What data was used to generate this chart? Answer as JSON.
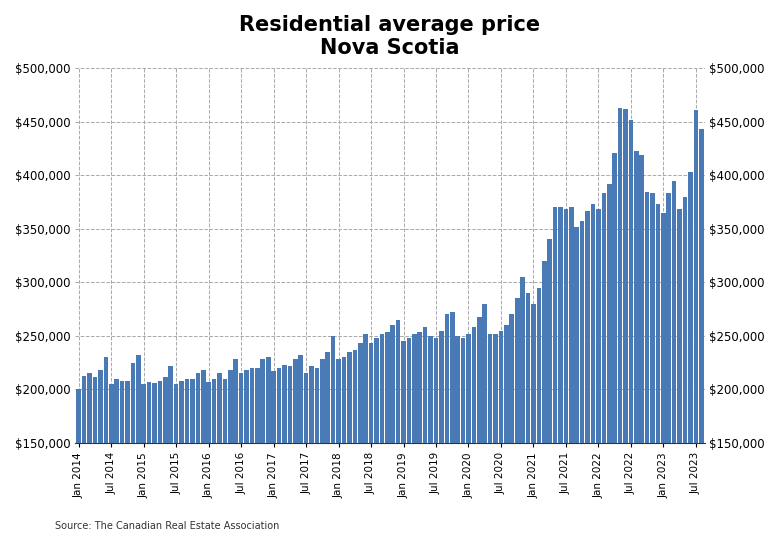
{
  "title": "Residential average price\nNova Scotia",
  "bar_color": "#4a7ab5",
  "source_text": "Source: The Canadian Real Estate Association",
  "ylim": [
    150000,
    500000
  ],
  "yticks": [
    150000,
    200000,
    250000,
    300000,
    350000,
    400000,
    450000,
    500000
  ],
  "xtick_labels": [
    "Jan 2014",
    "Jul 2014",
    "Jan 2015",
    "Jul 2015",
    "Jan 2016",
    "Jul 2016",
    "Jan 2017",
    "Jul 2017",
    "Jan 2018",
    "Jul 2018",
    "Jan 2019",
    "Jul 2019",
    "Jan 2020",
    "Jul 2020",
    "Jan 2021",
    "Jul 2021",
    "Jan 2022",
    "Jul 2022",
    "Jan 2023",
    "Jul 2023"
  ],
  "values": [
    200000,
    213000,
    215000,
    212000,
    218000,
    230000,
    205000,
    210000,
    208000,
    208000,
    225000,
    232000,
    205000,
    207000,
    206000,
    208000,
    212000,
    222000,
    205000,
    208000,
    210000,
    210000,
    215000,
    218000,
    207000,
    210000,
    215000,
    210000,
    218000,
    228000,
    215000,
    218000,
    220000,
    220000,
    228000,
    230000,
    217000,
    220000,
    223000,
    222000,
    228000,
    232000,
    215000,
    222000,
    220000,
    228000,
    235000,
    250000,
    228000,
    230000,
    235000,
    237000,
    243000,
    252000,
    243000,
    248000,
    252000,
    254000,
    260000,
    265000,
    245000,
    248000,
    252000,
    254000,
    258000,
    250000,
    248000,
    255000,
    270000,
    272000,
    250000,
    248000,
    252000,
    258000,
    268000,
    280000,
    252000,
    252000,
    255000,
    260000,
    270000,
    285000,
    305000,
    290000,
    280000,
    295000,
    320000,
    340000,
    370000,
    370000,
    368000,
    370000,
    352000,
    357000,
    367000,
    373000,
    368000,
    383000,
    392000,
    421000,
    463000,
    462000,
    452000,
    423000,
    419000,
    384000,
    383000,
    373000,
    365000,
    383000,
    395000,
    368000,
    380000,
    403000,
    461000,
    443000
  ]
}
